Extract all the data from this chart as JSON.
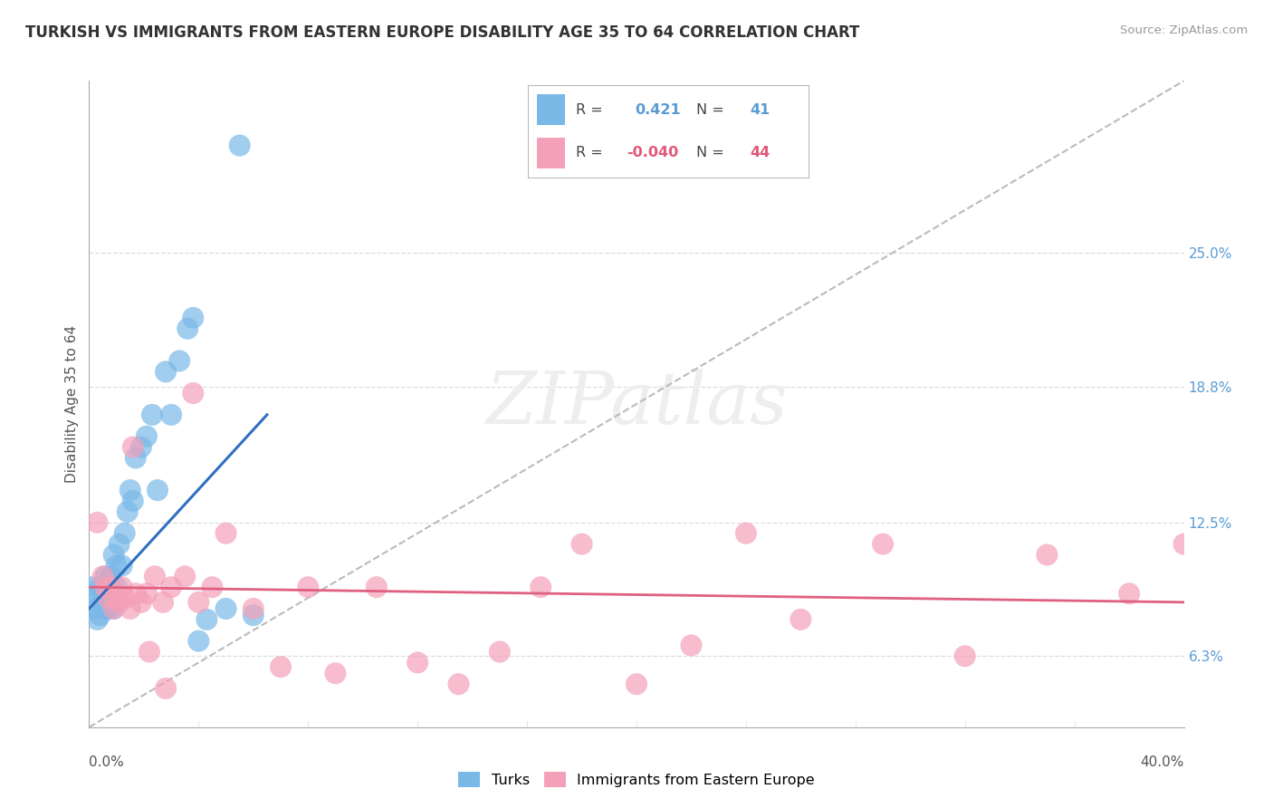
{
  "title": "TURKISH VS IMMIGRANTS FROM EASTERN EUROPE DISABILITY AGE 35 TO 64 CORRELATION CHART",
  "source": "Source: ZipAtlas.com",
  "ylabel": "Disability Age 35 to 64",
  "right_yticks": [
    "25.0%",
    "18.8%",
    "12.5%",
    "6.3%"
  ],
  "right_ytick_vals": [
    0.25,
    0.188,
    0.125,
    0.063
  ],
  "turks_x": [
    0.001,
    0.002,
    0.003,
    0.003,
    0.004,
    0.004,
    0.005,
    0.005,
    0.006,
    0.006,
    0.006,
    0.007,
    0.007,
    0.008,
    0.008,
    0.008,
    0.009,
    0.009,
    0.01,
    0.01,
    0.011,
    0.012,
    0.013,
    0.014,
    0.015,
    0.016,
    0.017,
    0.019,
    0.021,
    0.023,
    0.025,
    0.028,
    0.03,
    0.033,
    0.036,
    0.038,
    0.04,
    0.043,
    0.05,
    0.055,
    0.06
  ],
  "turks_y": [
    0.095,
    0.085,
    0.09,
    0.08,
    0.095,
    0.082,
    0.088,
    0.092,
    0.1,
    0.085,
    0.095,
    0.09,
    0.085,
    0.1,
    0.088,
    0.095,
    0.11,
    0.085,
    0.095,
    0.105,
    0.115,
    0.105,
    0.12,
    0.13,
    0.14,
    0.135,
    0.155,
    0.16,
    0.165,
    0.175,
    0.14,
    0.195,
    0.175,
    0.2,
    0.215,
    0.22,
    0.07,
    0.08,
    0.085,
    0.3,
    0.082
  ],
  "eastern_x": [
    0.003,
    0.005,
    0.006,
    0.007,
    0.008,
    0.009,
    0.01,
    0.011,
    0.012,
    0.013,
    0.015,
    0.017,
    0.019,
    0.021,
    0.024,
    0.027,
    0.03,
    0.035,
    0.04,
    0.045,
    0.05,
    0.06,
    0.07,
    0.08,
    0.09,
    0.105,
    0.12,
    0.135,
    0.15,
    0.165,
    0.18,
    0.2,
    0.22,
    0.24,
    0.26,
    0.29,
    0.32,
    0.35,
    0.38,
    0.4,
    0.016,
    0.022,
    0.028,
    0.038
  ],
  "eastern_y": [
    0.125,
    0.1,
    0.095,
    0.09,
    0.095,
    0.085,
    0.09,
    0.088,
    0.095,
    0.09,
    0.085,
    0.092,
    0.088,
    0.092,
    0.1,
    0.088,
    0.095,
    0.1,
    0.088,
    0.095,
    0.12,
    0.085,
    0.058,
    0.095,
    0.055,
    0.095,
    0.06,
    0.05,
    0.065,
    0.095,
    0.115,
    0.05,
    0.068,
    0.12,
    0.08,
    0.115,
    0.063,
    0.11,
    0.092,
    0.115,
    0.16,
    0.065,
    0.048,
    0.185
  ],
  "turks_color": "#7ab8e8",
  "eastern_color": "#f4a0b8",
  "turks_line_color": "#3070c0",
  "eastern_line_color": "#e06080",
  "diag_color": "#bbbbbb",
  "xlim": [
    0.0,
    0.4
  ],
  "ylim": [
    0.03,
    0.33
  ],
  "background_color": "#ffffff",
  "grid_color": "#dddddd",
  "watermark_color": "#eeeeee",
  "legend_border_color": "#bbbbbb",
  "r_value_blue": "#5b9bd5",
  "r_value_pink": "#e05878",
  "right_axis_color": "#5b9bd5"
}
